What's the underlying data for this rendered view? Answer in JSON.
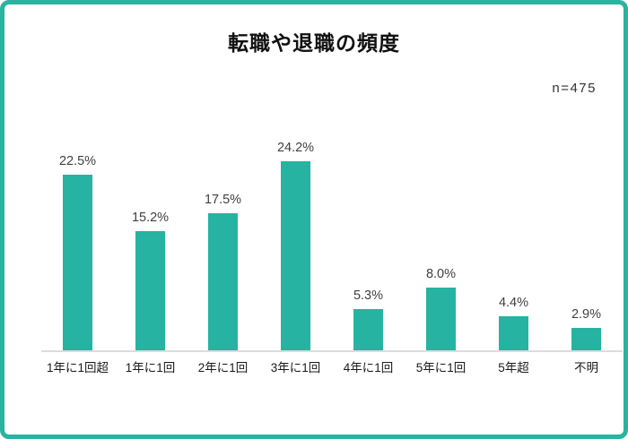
{
  "title": "転職や退職の頻度",
  "sample_size": "n=475",
  "colors": {
    "accent": "#26b3a2",
    "card_border": "#2ab3a1",
    "axis_line": "#dcdcdc",
    "value_label": "#404040",
    "category_label": "#1a1a1a",
    "title_color": "#111111"
  },
  "chart_data": {
    "type": "bar",
    "title": "転職や退職の頻度",
    "sample_size": "n=475",
    "categories": [
      "1年に1回超",
      "1年に1回",
      "2年に1回",
      "3年に1回",
      "4年に1回",
      "5年に1回",
      "5年超",
      "不明"
    ],
    "values": [
      22.5,
      15.2,
      17.5,
      24.2,
      5.3,
      8.0,
      4.4,
      2.9
    ],
    "value_labels": [
      "22.5%",
      "15.2%",
      "17.5%",
      "24.2%",
      "5.3%",
      "8.0%",
      "4.4%",
      "2.9%"
    ],
    "xlabel": "",
    "ylabel": "",
    "ylim": [
      0,
      25
    ],
    "bar_color": "#26b3a2",
    "grid": false,
    "legend_position": "none",
    "y_axis_visible": false,
    "data_labels": "above-bars"
  }
}
